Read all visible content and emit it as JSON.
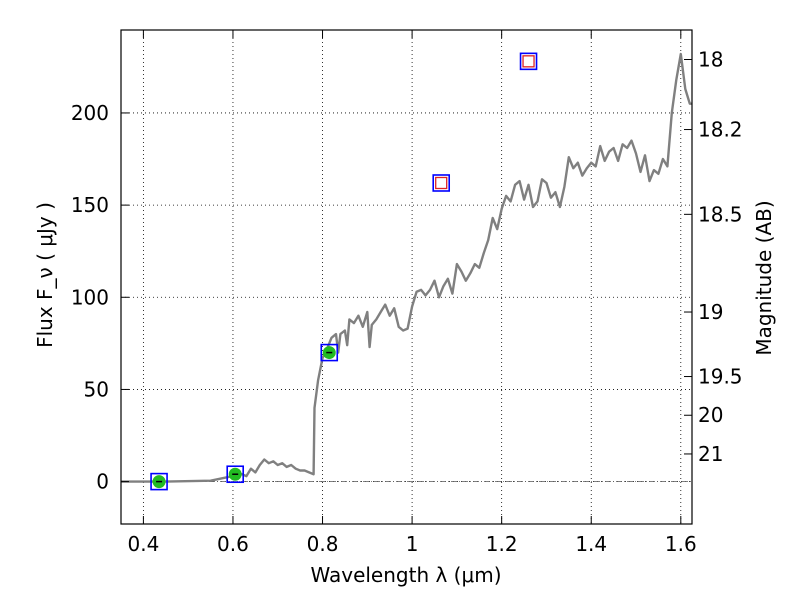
{
  "chart_data": {
    "type": "line",
    "xlabel": "Wavelength  λ (μm)",
    "ylabel": "Flux  F_ν  ( μJy )",
    "ylabel_right": "Magnitude (AB)",
    "xlim": [
      0.35,
      1.625
    ],
    "ylim": [
      -23,
      245
    ],
    "x_ticks": [
      0.4,
      0.6,
      0.8,
      1.0,
      1.2,
      1.4,
      1.6
    ],
    "x_tick_labels": [
      "0.4",
      "0.6",
      "0.8",
      "1",
      "1.2",
      "1.4",
      "1.6"
    ],
    "y_ticks": [
      0,
      50,
      100,
      150,
      200
    ],
    "y_tick_labels": [
      "0",
      "50",
      "100",
      "150",
      "200"
    ],
    "right_ticks": [
      {
        "label": "18",
        "flux": 229
      },
      {
        "label": "18.2",
        "flux": 191
      },
      {
        "label": "18.5",
        "flux": 145
      },
      {
        "label": "19",
        "flux": 92
      },
      {
        "label": "19.5",
        "flux": 57
      },
      {
        "label": "20",
        "flux": 36
      },
      {
        "label": "21",
        "flux": 15
      }
    ],
    "grid": true,
    "colors": {
      "model": "#808080",
      "box": "#0000ff",
      "detection": "#22bb22",
      "upper_limit": "#dd2222",
      "zero_line": "#555555"
    },
    "series": [
      {
        "style": "model-spectrum",
        "x": [
          0.35,
          0.45,
          0.55,
          0.62,
          0.63,
          0.64,
          0.65,
          0.66,
          0.67,
          0.68,
          0.69,
          0.7,
          0.71,
          0.72,
          0.73,
          0.74,
          0.75,
          0.76,
          0.77,
          0.78,
          0.782,
          0.79,
          0.8,
          0.81,
          0.82,
          0.83,
          0.835,
          0.84,
          0.85,
          0.855,
          0.86,
          0.87,
          0.88,
          0.89,
          0.9,
          0.905,
          0.91,
          0.92,
          0.93,
          0.94,
          0.95,
          0.96,
          0.97,
          0.98,
          0.99,
          1.0,
          1.01,
          1.02,
          1.03,
          1.04,
          1.05,
          1.06,
          1.07,
          1.08,
          1.09,
          1.1,
          1.11,
          1.12,
          1.13,
          1.14,
          1.15,
          1.16,
          1.17,
          1.18,
          1.19,
          1.2,
          1.21,
          1.22,
          1.23,
          1.24,
          1.25,
          1.26,
          1.27,
          1.28,
          1.29,
          1.3,
          1.31,
          1.32,
          1.33,
          1.34,
          1.35,
          1.36,
          1.37,
          1.38,
          1.39,
          1.4,
          1.41,
          1.42,
          1.43,
          1.44,
          1.45,
          1.46,
          1.47,
          1.48,
          1.49,
          1.5,
          1.51,
          1.52,
          1.53,
          1.54,
          1.55,
          1.56,
          1.57,
          1.58,
          1.59,
          1.6,
          1.61,
          1.62,
          1.625
        ],
        "y": [
          0,
          0,
          0.5,
          4,
          3,
          7,
          5,
          9,
          12,
          10,
          11,
          9,
          10,
          8,
          9,
          7,
          6,
          6,
          5,
          4,
          40,
          55,
          67,
          72,
          78,
          80,
          70,
          80,
          82,
          74,
          88,
          86,
          90,
          84,
          92,
          73,
          85,
          88,
          92,
          96,
          90,
          94,
          84,
          82,
          83,
          95,
          103,
          104,
          101,
          104,
          109,
          100,
          106,
          110,
          102,
          118,
          114,
          109,
          113,
          118,
          116,
          124,
          131,
          143,
          137,
          148,
          155,
          152,
          161,
          163,
          153,
          161,
          149,
          152,
          164,
          162,
          154,
          157,
          149,
          160,
          176,
          170,
          173,
          166,
          170,
          173,
          171,
          182,
          174,
          179,
          181,
          174,
          183,
          181,
          185,
          178,
          168,
          177,
          163,
          169,
          167,
          175,
          171,
          200,
          218,
          232,
          213,
          205,
          205
        ]
      },
      {
        "style": "photometry-detections",
        "x": [
          0.435,
          0.605,
          0.815
        ],
        "y": [
          0,
          4,
          70
        ]
      },
      {
        "style": "photometry-upper-limits",
        "x": [
          1.065,
          1.26
        ],
        "y": [
          162,
          228
        ]
      }
    ]
  }
}
